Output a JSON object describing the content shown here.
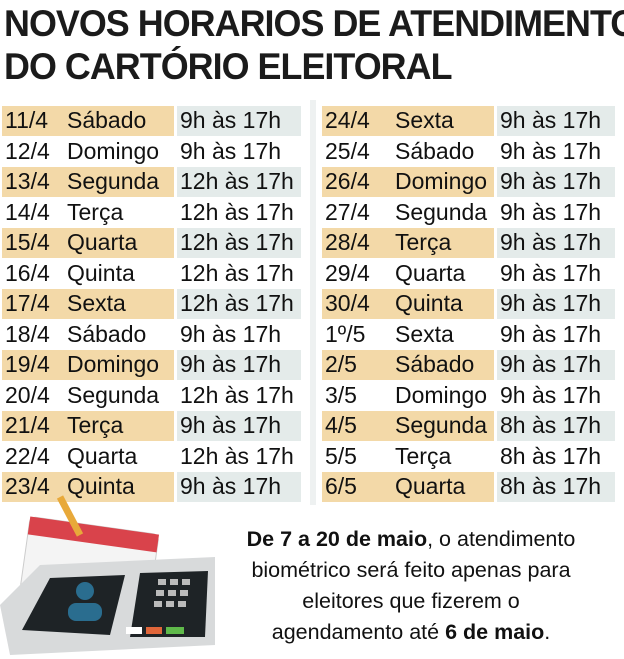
{
  "header": {
    "title_lines": [
      "NOVOS HORARIOS DE ATENDIMENTO",
      "DO CARTÓRIO ELEITORAL"
    ]
  },
  "tables": [
    {
      "rows": [
        [
          "11/4",
          "Sábado",
          "9h às 17h"
        ],
        [
          "12/4",
          "Domingo",
          "9h às 17h"
        ],
        [
          "13/4",
          "Segunda",
          "12h às 17h"
        ],
        [
          "14/4",
          "Terça",
          "12h às 17h"
        ],
        [
          "15/4",
          "Quarta",
          "12h às 17h"
        ],
        [
          "16/4",
          "Quinta",
          "12h às 17h"
        ],
        [
          "17/4",
          "Sexta",
          "12h às 17h"
        ],
        [
          "18/4",
          "Sábado",
          "9h às 17h"
        ],
        [
          "19/4",
          "Domingo",
          "9h às 17h"
        ],
        [
          "20/4",
          "Segunda",
          "12h às 17h"
        ],
        [
          "21/4",
          "Terça",
          "9h às 17h"
        ],
        [
          "22/4",
          "Quarta",
          "12h às 17h"
        ],
        [
          "23/4",
          "Quinta",
          "9h às 17h"
        ]
      ]
    },
    {
      "rows": [
        [
          "24/4",
          "Sexta",
          "9h às 17h"
        ],
        [
          "25/4",
          "Sábado",
          "9h às 17h"
        ],
        [
          "26/4",
          "Domingo",
          "9h às 17h"
        ],
        [
          "27/4",
          "Segunda",
          "9h às 17h"
        ],
        [
          "28/4",
          "Terça",
          "9h às 17h"
        ],
        [
          "29/4",
          "Quarta",
          "9h às 17h"
        ],
        [
          "30/4",
          "Quinta",
          "9h às 17h"
        ],
        [
          "1º/5",
          "Sexta",
          "9h às 17h"
        ],
        [
          "2/5",
          "Sábado",
          "9h às 17h"
        ],
        [
          "3/5",
          "Domingo",
          "9h às 17h"
        ],
        [
          "4/5",
          "Segunda",
          "8h às 17h"
        ],
        [
          "5/5",
          "Terça",
          "8h às 17h"
        ],
        [
          "6/5",
          "Quarta",
          "8h às 17h"
        ]
      ]
    }
  ],
  "footer": {
    "parts": [
      "De 7 a 20 de maio",
      ", o atendimento biométrico será feito apenas para eleitores que fizerem o agendamento até ",
      "6 de maio",
      "."
    ]
  }
}
